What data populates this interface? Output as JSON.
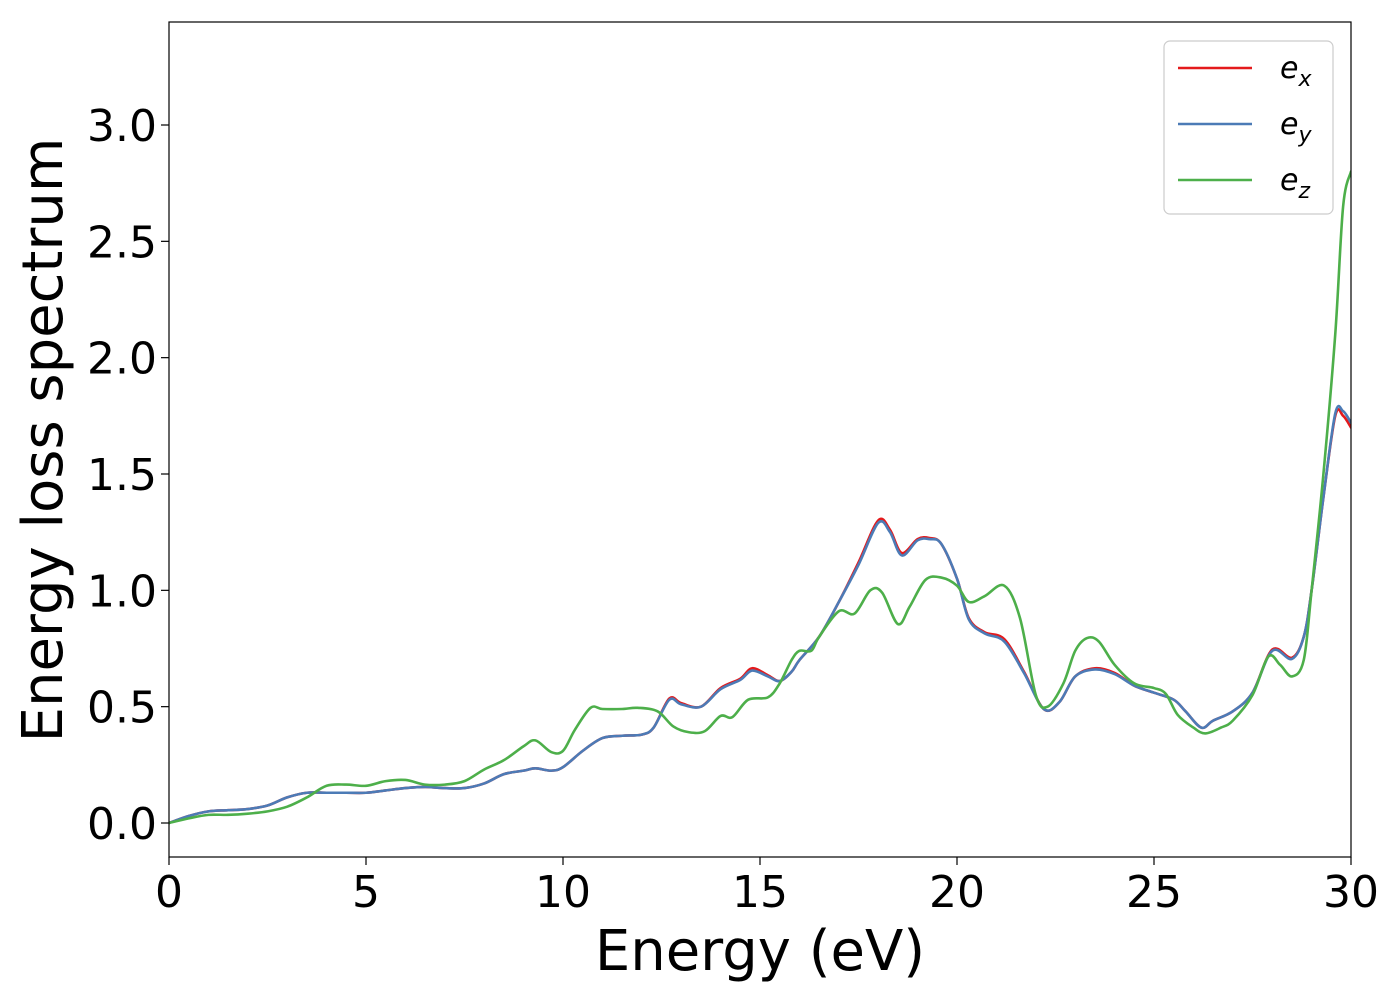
{
  "chart_data": {
    "type": "line",
    "title": "",
    "xlabel": "Energy (eV)",
    "ylabel": "Energy loss spectrum",
    "xlim": [
      0,
      30
    ],
    "ylim": [
      -0.15,
      3.45
    ],
    "xticks": [
      0,
      5,
      10,
      15,
      20,
      25,
      30
    ],
    "xtick_labels": [
      "0",
      "5",
      "10",
      "15",
      "20",
      "25",
      "30"
    ],
    "yticks": [
      0.0,
      0.5,
      1.0,
      1.5,
      2.0,
      2.5,
      3.0
    ],
    "ytick_labels": [
      "0.0",
      "0.5",
      "1.0",
      "1.5",
      "2.0",
      "2.5",
      "3.0"
    ],
    "grid": false,
    "legend_position": "top-right",
    "series": [
      {
        "name": "e_x",
        "legend_base": "e",
        "legend_sub": "x",
        "color": "#e41a1c",
        "points": [
          [
            0,
            0.0
          ],
          [
            0.5,
            0.03
          ],
          [
            1,
            0.05
          ],
          [
            1.5,
            0.055
          ],
          [
            2,
            0.06
          ],
          [
            2.5,
            0.075
          ],
          [
            3,
            0.11
          ],
          [
            3.5,
            0.13
          ],
          [
            4,
            0.13
          ],
          [
            4.5,
            0.13
          ],
          [
            5,
            0.13
          ],
          [
            5.5,
            0.14
          ],
          [
            6,
            0.15
          ],
          [
            6.5,
            0.155
          ],
          [
            7,
            0.15
          ],
          [
            7.5,
            0.15
          ],
          [
            8,
            0.17
          ],
          [
            8.5,
            0.21
          ],
          [
            9,
            0.225
          ],
          [
            9.3,
            0.235
          ],
          [
            9.7,
            0.225
          ],
          [
            10,
            0.24
          ],
          [
            10.5,
            0.31
          ],
          [
            11,
            0.365
          ],
          [
            11.5,
            0.375
          ],
          [
            12,
            0.38
          ],
          [
            12.3,
            0.41
          ],
          [
            12.7,
            0.535
          ],
          [
            13,
            0.515
          ],
          [
            13.5,
            0.5
          ],
          [
            14,
            0.58
          ],
          [
            14.5,
            0.62
          ],
          [
            14.8,
            0.665
          ],
          [
            15.2,
            0.635
          ],
          [
            15.5,
            0.61
          ],
          [
            15.8,
            0.65
          ],
          [
            16,
            0.7
          ],
          [
            16.5,
            0.8
          ],
          [
            17,
            0.95
          ],
          [
            17.5,
            1.12
          ],
          [
            18,
            1.3
          ],
          [
            18.3,
            1.26
          ],
          [
            18.6,
            1.16
          ],
          [
            19,
            1.22
          ],
          [
            19.3,
            1.225
          ],
          [
            19.6,
            1.2
          ],
          [
            20,
            1.05
          ],
          [
            20.3,
            0.88
          ],
          [
            20.7,
            0.82
          ],
          [
            21.2,
            0.79
          ],
          [
            21.7,
            0.65
          ],
          [
            22.2,
            0.49
          ],
          [
            22.6,
            0.52
          ],
          [
            23,
            0.63
          ],
          [
            23.5,
            0.665
          ],
          [
            24,
            0.645
          ],
          [
            24.5,
            0.59
          ],
          [
            25,
            0.56
          ],
          [
            25.5,
            0.53
          ],
          [
            25.8,
            0.48
          ],
          [
            26.2,
            0.41
          ],
          [
            26.5,
            0.44
          ],
          [
            27,
            0.48
          ],
          [
            27.5,
            0.56
          ],
          [
            28,
            0.745
          ],
          [
            28.5,
            0.71
          ],
          [
            28.8,
            0.8
          ],
          [
            29,
            1.0
          ],
          [
            29.3,
            1.4
          ],
          [
            29.6,
            1.75
          ],
          [
            29.8,
            1.75
          ],
          [
            30,
            1.7
          ]
        ]
      },
      {
        "name": "e_y",
        "legend_base": "e",
        "legend_sub": "y",
        "color": "#4c7bb6",
        "points": [
          [
            0,
            0.0
          ],
          [
            0.5,
            0.03
          ],
          [
            1,
            0.05
          ],
          [
            1.5,
            0.055
          ],
          [
            2,
            0.06
          ],
          [
            2.5,
            0.075
          ],
          [
            3,
            0.11
          ],
          [
            3.5,
            0.13
          ],
          [
            4,
            0.13
          ],
          [
            4.5,
            0.13
          ],
          [
            5,
            0.13
          ],
          [
            5.5,
            0.14
          ],
          [
            6,
            0.15
          ],
          [
            6.5,
            0.155
          ],
          [
            7,
            0.15
          ],
          [
            7.5,
            0.15
          ],
          [
            8,
            0.17
          ],
          [
            8.5,
            0.21
          ],
          [
            9,
            0.225
          ],
          [
            9.3,
            0.235
          ],
          [
            9.7,
            0.225
          ],
          [
            10,
            0.24
          ],
          [
            10.5,
            0.31
          ],
          [
            11,
            0.365
          ],
          [
            11.5,
            0.375
          ],
          [
            12,
            0.38
          ],
          [
            12.3,
            0.41
          ],
          [
            12.7,
            0.53
          ],
          [
            13,
            0.51
          ],
          [
            13.5,
            0.5
          ],
          [
            14,
            0.575
          ],
          [
            14.5,
            0.615
          ],
          [
            14.8,
            0.655
          ],
          [
            15.2,
            0.63
          ],
          [
            15.5,
            0.61
          ],
          [
            15.8,
            0.65
          ],
          [
            16,
            0.7
          ],
          [
            16.5,
            0.8
          ],
          [
            17,
            0.95
          ],
          [
            17.5,
            1.11
          ],
          [
            18,
            1.29
          ],
          [
            18.3,
            1.25
          ],
          [
            18.6,
            1.15
          ],
          [
            19,
            1.215
          ],
          [
            19.3,
            1.22
          ],
          [
            19.6,
            1.2
          ],
          [
            20,
            1.05
          ],
          [
            20.3,
            0.875
          ],
          [
            20.7,
            0.815
          ],
          [
            21.2,
            0.78
          ],
          [
            21.7,
            0.645
          ],
          [
            22.2,
            0.49
          ],
          [
            22.6,
            0.52
          ],
          [
            23,
            0.63
          ],
          [
            23.5,
            0.66
          ],
          [
            24,
            0.64
          ],
          [
            24.5,
            0.59
          ],
          [
            25,
            0.56
          ],
          [
            25.5,
            0.53
          ],
          [
            25.8,
            0.48
          ],
          [
            26.2,
            0.41
          ],
          [
            26.5,
            0.44
          ],
          [
            27,
            0.48
          ],
          [
            27.5,
            0.56
          ],
          [
            28,
            0.74
          ],
          [
            28.5,
            0.705
          ],
          [
            28.8,
            0.8
          ],
          [
            29,
            1.0
          ],
          [
            29.3,
            1.4
          ],
          [
            29.6,
            1.76
          ],
          [
            29.8,
            1.77
          ],
          [
            30,
            1.72
          ]
        ]
      },
      {
        "name": "e_z",
        "legend_base": "e",
        "legend_sub": "z",
        "color": "#4daf4a",
        "points": [
          [
            0,
            0.0
          ],
          [
            0.5,
            0.02
          ],
          [
            1,
            0.035
          ],
          [
            1.5,
            0.035
          ],
          [
            2,
            0.04
          ],
          [
            2.5,
            0.05
          ],
          [
            3,
            0.07
          ],
          [
            3.5,
            0.11
          ],
          [
            4,
            0.16
          ],
          [
            4.5,
            0.165
          ],
          [
            5,
            0.16
          ],
          [
            5.5,
            0.18
          ],
          [
            6,
            0.185
          ],
          [
            6.5,
            0.165
          ],
          [
            7,
            0.165
          ],
          [
            7.5,
            0.18
          ],
          [
            8,
            0.23
          ],
          [
            8.5,
            0.27
          ],
          [
            9,
            0.33
          ],
          [
            9.3,
            0.355
          ],
          [
            9.7,
            0.305
          ],
          [
            10,
            0.31
          ],
          [
            10.3,
            0.4
          ],
          [
            10.7,
            0.495
          ],
          [
            11,
            0.49
          ],
          [
            11.5,
            0.49
          ],
          [
            11.9,
            0.495
          ],
          [
            12.4,
            0.48
          ],
          [
            12.8,
            0.415
          ],
          [
            13.2,
            0.39
          ],
          [
            13.6,
            0.395
          ],
          [
            14,
            0.46
          ],
          [
            14.3,
            0.455
          ],
          [
            14.7,
            0.53
          ],
          [
            15.2,
            0.54
          ],
          [
            15.5,
            0.6
          ],
          [
            15.8,
            0.7
          ],
          [
            16,
            0.74
          ],
          [
            16.3,
            0.74
          ],
          [
            16.5,
            0.8
          ],
          [
            17,
            0.91
          ],
          [
            17.4,
            0.9
          ],
          [
            17.8,
            1.0
          ],
          [
            18.1,
            0.99
          ],
          [
            18.5,
            0.855
          ],
          [
            18.8,
            0.93
          ],
          [
            19.2,
            1.045
          ],
          [
            19.6,
            1.055
          ],
          [
            20,
            1.02
          ],
          [
            20.3,
            0.95
          ],
          [
            20.7,
            0.975
          ],
          [
            21.2,
            1.02
          ],
          [
            21.6,
            0.88
          ],
          [
            22,
            0.55
          ],
          [
            22.3,
            0.5
          ],
          [
            22.7,
            0.6
          ],
          [
            23,
            0.74
          ],
          [
            23.3,
            0.795
          ],
          [
            23.6,
            0.78
          ],
          [
            24,
            0.68
          ],
          [
            24.5,
            0.6
          ],
          [
            25,
            0.58
          ],
          [
            25.3,
            0.555
          ],
          [
            25.6,
            0.465
          ],
          [
            26,
            0.41
          ],
          [
            26.3,
            0.385
          ],
          [
            26.7,
            0.41
          ],
          [
            27,
            0.44
          ],
          [
            27.5,
            0.55
          ],
          [
            27.9,
            0.715
          ],
          [
            28.2,
            0.68
          ],
          [
            28.5,
            0.63
          ],
          [
            28.8,
            0.7
          ],
          [
            29,
            1.0
          ],
          [
            29.3,
            1.5
          ],
          [
            29.6,
            2.1
          ],
          [
            29.8,
            2.65
          ],
          [
            30,
            2.8
          ]
        ]
      }
    ]
  }
}
